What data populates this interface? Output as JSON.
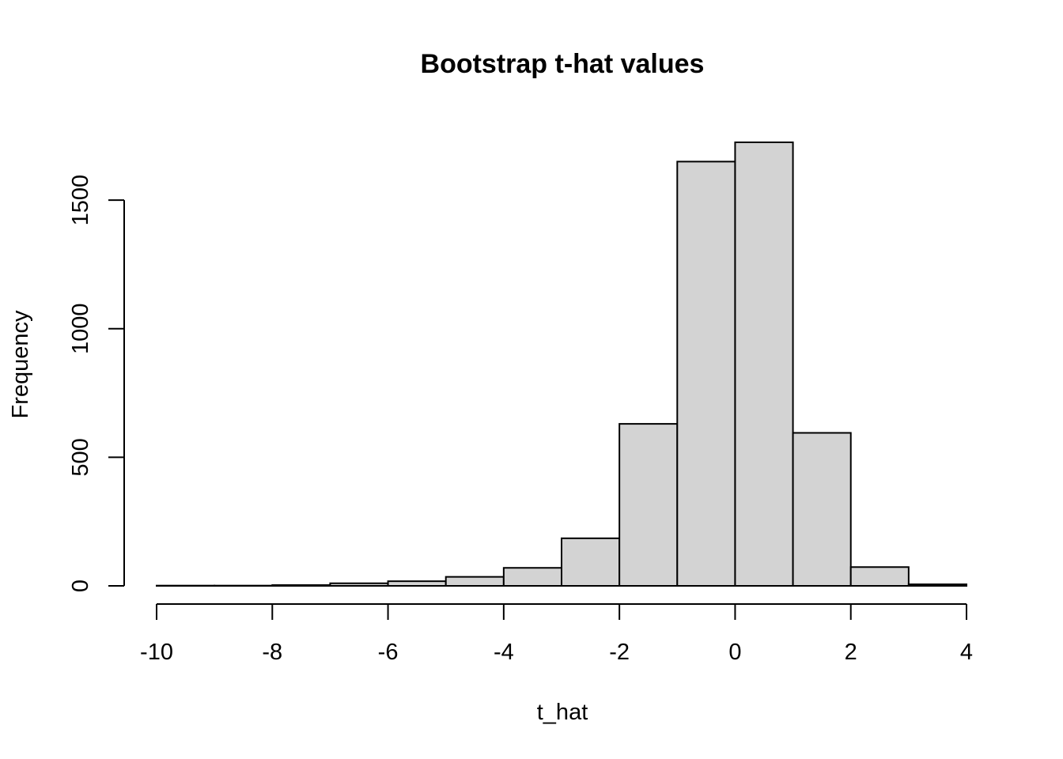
{
  "chart_data": {
    "type": "bar",
    "title": "Bootstrap t-hat values",
    "xlabel": "t_hat",
    "ylabel": "Frequency",
    "bins": [
      {
        "from": -10,
        "to": -9,
        "count": 1
      },
      {
        "from": -9,
        "to": -8,
        "count": 1
      },
      {
        "from": -8,
        "to": -7,
        "count": 3
      },
      {
        "from": -7,
        "to": -6,
        "count": 10
      },
      {
        "from": -6,
        "to": -5,
        "count": 18
      },
      {
        "from": -5,
        "to": -4,
        "count": 35
      },
      {
        "from": -4,
        "to": -3,
        "count": 70
      },
      {
        "from": -3,
        "to": -2,
        "count": 185
      },
      {
        "from": -2,
        "to": -1,
        "count": 630
      },
      {
        "from": -1,
        "to": 0,
        "count": 1650
      },
      {
        "from": 0,
        "to": 1,
        "count": 1725
      },
      {
        "from": 1,
        "to": 2,
        "count": 595
      },
      {
        "from": 2,
        "to": 3,
        "count": 73
      },
      {
        "from": 3,
        "to": 4,
        "count": 6
      }
    ],
    "xlim": [
      -10,
      4
    ],
    "ylim": [
      0,
      1725
    ],
    "x_ticks": [
      -10,
      -8,
      -6,
      -4,
      -2,
      0,
      2,
      4
    ],
    "x_tick_labels": [
      "-10",
      "-8",
      "-6",
      "-4",
      "-2",
      "0",
      "2",
      "4"
    ],
    "y_ticks": [
      0,
      500,
      1000,
      1500
    ],
    "y_tick_labels": [
      "0",
      "500",
      "1000",
      "1500"
    ],
    "grid": false,
    "bar_fill": "#d3d3d3",
    "bar_stroke": "#000000"
  }
}
